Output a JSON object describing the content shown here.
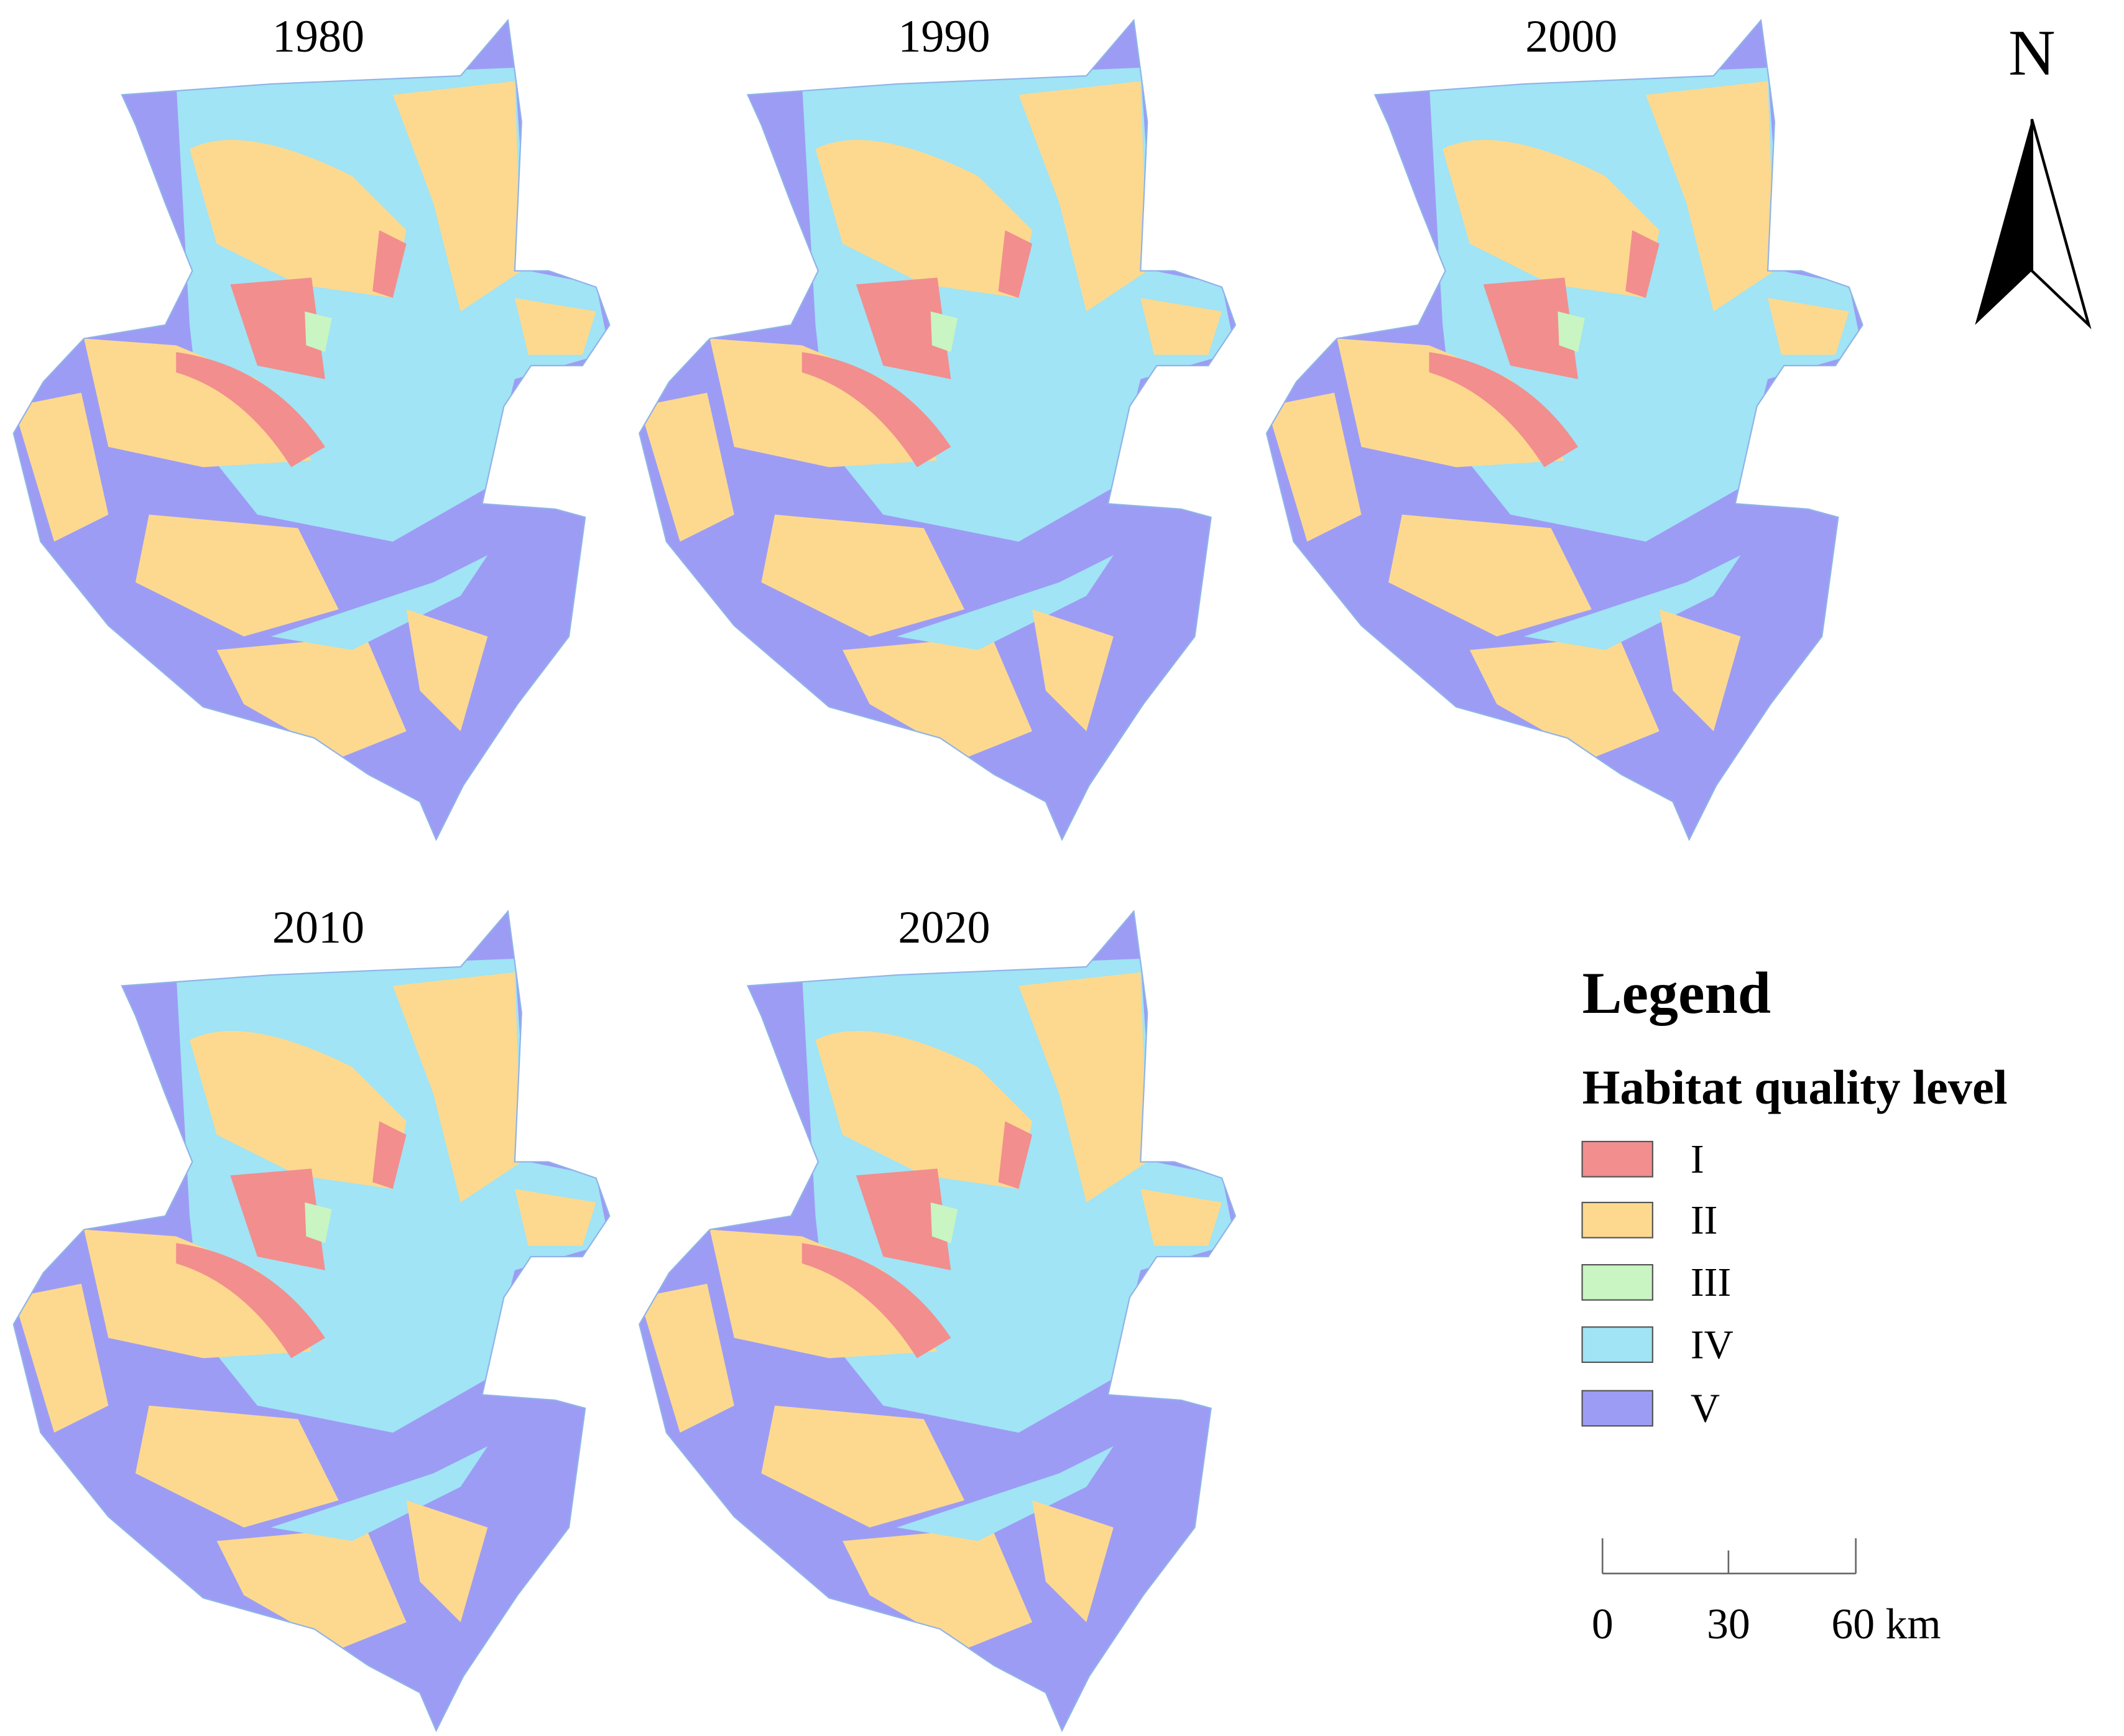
{
  "panels": [
    {
      "title": "1980"
    },
    {
      "title": "1990"
    },
    {
      "title": "2000"
    },
    {
      "title": "2010"
    },
    {
      "title": "2020"
    }
  ],
  "north_arrow": {
    "label": "N"
  },
  "legend": {
    "title": "Legend",
    "subtitle": "Habitat quality level",
    "items": [
      {
        "label": "I",
        "color": "#f28e8e"
      },
      {
        "label": "II",
        "color": "#fcd98f"
      },
      {
        "label": "III",
        "color": "#c8f5c2"
      },
      {
        "label": "IV",
        "color": "#a0e4f5"
      },
      {
        "label": "V",
        "color": "#9d9cf5"
      }
    ]
  },
  "scale_bar": {
    "labels": [
      "0",
      "30",
      "60 km"
    ]
  }
}
